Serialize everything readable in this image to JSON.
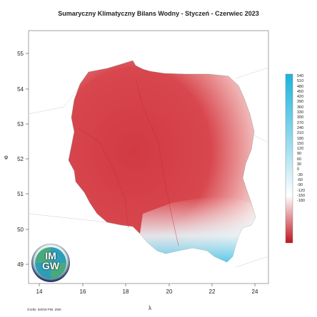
{
  "title": "Sumaryczny Klimatyczny Bilans Wodny - Styczeń - Czerwiec 2023",
  "axes": {
    "x_label": "λ",
    "y_label": "φ",
    "x_ticks": [
      "14",
      "16",
      "18",
      "20",
      "22",
      "24"
    ],
    "y_ticks": [
      "55",
      "54",
      "53",
      "52",
      "51",
      "50",
      "49"
    ]
  },
  "legend": {
    "labels": [
      "540",
      "510",
      "480",
      "450",
      "420",
      "390",
      "360",
      "330",
      "300",
      "270",
      "240",
      "210",
      "180",
      "150",
      "120",
      "90",
      "60",
      "30",
      "0",
      "-30",
      "-60",
      "-90",
      "-120",
      "-150",
      "-180"
    ],
    "colors": {
      "max": "#1ab4dc",
      "zero": "#ffffff",
      "min": "#c0141e"
    }
  },
  "logo": {
    "line1": "IM",
    "line2": "GW"
  },
  "source": "źródło: IMGW-PIB: ZMK"
}
